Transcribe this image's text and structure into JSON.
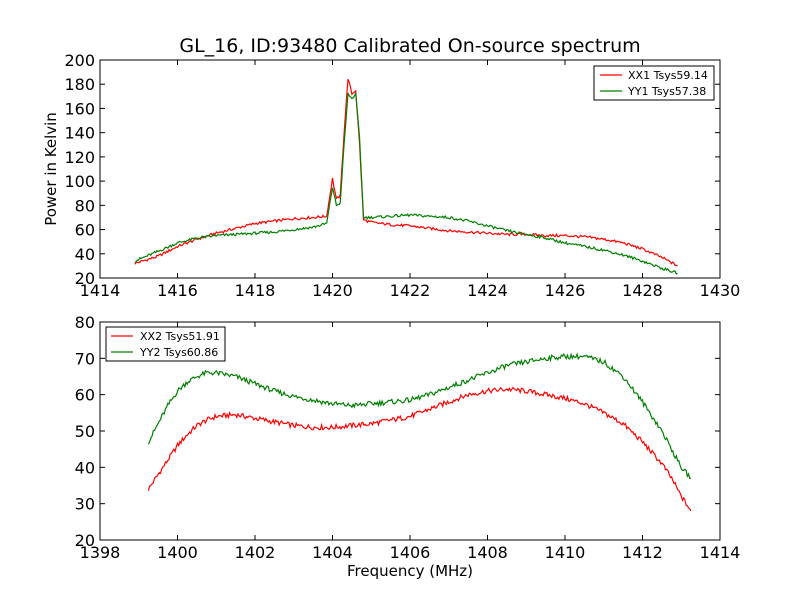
{
  "title": "GL_16, ID:93480 Calibrated On-source spectrum",
  "chart_data": [
    {
      "type": "line",
      "ylabel": "Power in Kelvin",
      "xlim": [
        1414,
        1430
      ],
      "ylim": [
        20,
        200
      ],
      "xticks": [
        1414,
        1416,
        1418,
        1420,
        1422,
        1424,
        1426,
        1428,
        1430
      ],
      "yticks": [
        20,
        40,
        60,
        80,
        100,
        120,
        140,
        160,
        180,
        200
      ],
      "legend": "top-right",
      "series": [
        {
          "name": "XX1 Tsys59.14",
          "color": "#ff0000",
          "x": [
            1414.9,
            1415.5,
            1416.0,
            1416.5,
            1417.0,
            1417.5,
            1418.0,
            1418.5,
            1419.0,
            1419.5,
            1419.85,
            1420.0,
            1420.1,
            1420.2,
            1420.3,
            1420.4,
            1420.5,
            1420.6,
            1420.7,
            1420.8,
            1421.0,
            1421.5,
            1422.0,
            1422.5,
            1423.0,
            1423.5,
            1424.0,
            1424.5,
            1425.0,
            1425.5,
            1426.0,
            1426.5,
            1427.0,
            1427.5,
            1428.0,
            1428.5,
            1428.9
          ],
          "y": [
            32,
            38,
            46,
            52,
            57,
            61,
            65,
            67,
            69,
            70,
            71,
            102,
            85,
            88,
            140,
            185,
            172,
            175,
            130,
            68,
            66,
            64,
            63,
            61,
            59,
            58,
            57,
            56,
            56,
            55,
            55,
            54,
            52,
            49,
            44,
            37,
            30
          ]
        },
        {
          "name": "YY1 Tsys57.38",
          "color": "#008000",
          "x": [
            1414.9,
            1415.5,
            1416.0,
            1416.5,
            1417.0,
            1417.5,
            1418.0,
            1418.5,
            1419.0,
            1419.5,
            1419.85,
            1420.0,
            1420.1,
            1420.2,
            1420.3,
            1420.4,
            1420.5,
            1420.6,
            1420.7,
            1420.8,
            1421.0,
            1421.5,
            1422.0,
            1422.5,
            1423.0,
            1423.5,
            1424.0,
            1424.5,
            1425.0,
            1425.5,
            1426.0,
            1426.5,
            1427.0,
            1427.5,
            1428.0,
            1428.5,
            1428.9
          ],
          "y": [
            34,
            42,
            49,
            53,
            55,
            56,
            57,
            58,
            60,
            62,
            65,
            95,
            80,
            82,
            130,
            172,
            168,
            172,
            135,
            70,
            70,
            71,
            72,
            71,
            70,
            67,
            63,
            59,
            56,
            53,
            49,
            46,
            43,
            39,
            34,
            28,
            24
          ]
        }
      ]
    },
    {
      "type": "line",
      "xlabel": "Frequency (MHz)",
      "xlim": [
        1398,
        1414
      ],
      "ylim": [
        20,
        80
      ],
      "xticks": [
        1398,
        1400,
        1402,
        1404,
        1406,
        1408,
        1410,
        1412,
        1414
      ],
      "yticks": [
        20,
        30,
        40,
        50,
        60,
        70,
        80
      ],
      "legend": "top-left",
      "series": [
        {
          "name": "XX2 Tsys51.91",
          "color": "#ff0000",
          "x": [
            1399.25,
            1399.5,
            1399.75,
            1400.0,
            1400.25,
            1400.5,
            1400.75,
            1401.0,
            1401.5,
            1402.0,
            1402.5,
            1403.0,
            1403.5,
            1404.0,
            1404.5,
            1405.0,
            1405.5,
            1406.0,
            1406.5,
            1407.0,
            1407.5,
            1408.0,
            1408.5,
            1409.0,
            1409.5,
            1410.0,
            1410.5,
            1411.0,
            1411.5,
            1412.0,
            1412.5,
            1412.75,
            1413.0,
            1413.25
          ],
          "y": [
            34,
            38,
            42,
            46,
            49,
            51.5,
            53,
            54,
            54.5,
            53.5,
            52.5,
            51.5,
            51,
            51,
            51.5,
            52,
            53,
            54,
            56,
            58,
            60,
            61,
            61.5,
            61,
            60,
            59,
            57.5,
            55,
            52,
            47,
            41,
            37,
            32,
            28
          ]
        },
        {
          "name": "YY2 Tsys60.86",
          "color": "#008000",
          "x": [
            1399.25,
            1399.5,
            1399.75,
            1400.0,
            1400.25,
            1400.5,
            1400.75,
            1401.0,
            1401.5,
            1402.0,
            1402.5,
            1403.0,
            1403.5,
            1404.0,
            1404.5,
            1405.0,
            1405.5,
            1406.0,
            1406.5,
            1407.0,
            1407.5,
            1408.0,
            1408.5,
            1409.0,
            1409.5,
            1410.0,
            1410.5,
            1411.0,
            1411.5,
            1412.0,
            1412.5,
            1412.75,
            1413.0,
            1413.25
          ],
          "y": [
            47,
            52,
            57,
            61,
            63.5,
            65,
            66,
            66,
            65,
            63,
            61,
            59.5,
            58.5,
            57.5,
            57,
            57.5,
            58,
            58.5,
            60,
            62,
            64,
            66,
            68,
            69,
            70,
            70.5,
            70.5,
            69,
            65,
            58,
            50,
            45,
            40,
            37
          ]
        }
      ]
    }
  ]
}
